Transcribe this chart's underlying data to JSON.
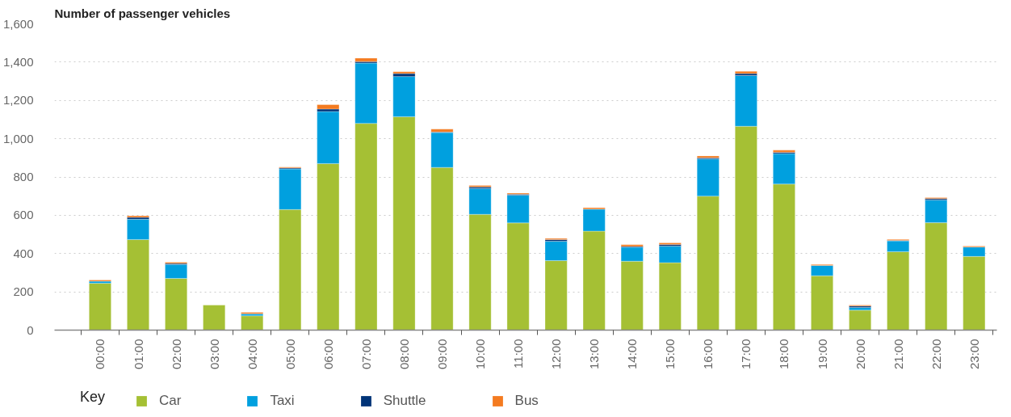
{
  "chart_data": {
    "type": "bar",
    "title": "Number of passenger vehicles",
    "categories": [
      "00:00",
      "01:00",
      "02:00",
      "03:00",
      "04:00",
      "05:00",
      "06:00",
      "07:00",
      "08:00",
      "09:00",
      "10:00",
      "11:00",
      "12:00",
      "13:00",
      "14:00",
      "15:00",
      "16:00",
      "17:00",
      "18:00",
      "19:00",
      "20:00",
      "21:00",
      "22:00",
      "23:00"
    ],
    "stacked": true,
    "series": [
      {
        "name": "Car",
        "color": "#a5c034",
        "values": [
          245,
          473,
          270,
          131,
          75,
          630,
          870,
          1080,
          1115,
          850,
          605,
          560,
          363,
          517,
          360,
          352,
          700,
          1065,
          763,
          284,
          104,
          410,
          561,
          385
        ]
      },
      {
        "name": "Taxi",
        "color": "#00a0df",
        "values": [
          10,
          106,
          73,
          null,
          10,
          212,
          272,
          315,
          210,
          182,
          135,
          145,
          101,
          115,
          73,
          87,
          194,
          265,
          159,
          54,
          14,
          56,
          119,
          49
        ]
      },
      {
        "name": "Shuttle",
        "color": "#003478",
        "values": [
          null,
          10,
          5,
          null,
          null,
          5,
          13,
          8,
          15,
          3,
          8,
          5,
          9,
          null,
          4,
          9,
          6,
          10,
          7,
          null,
          8,
          3,
          7,
          null
        ]
      },
      {
        "name": "Bus",
        "color": "#f47b20",
        "values": [
          7,
          8,
          7,
          null,
          8,
          5,
          23,
          18,
          10,
          15,
          8,
          6,
          6,
          8,
          9,
          8,
          10,
          12,
          11,
          5,
          5,
          5,
          5,
          5
        ]
      }
    ],
    "ylim": [
      0,
      1600
    ],
    "yticks": [
      0,
      {
        "value": 200,
        "label": "200"
      },
      {
        "value": 400,
        "label": "400"
      },
      {
        "value": 600,
        "label": "600"
      },
      {
        "value": 800,
        "label": "800"
      },
      {
        "value": 1000,
        "label": "1,000"
      },
      {
        "value": 1200,
        "label": "1,200"
      },
      {
        "value": 1400,
        "label": "1,400"
      },
      {
        "value": 1600,
        "label": "1,600"
      }
    ],
    "grid": "y",
    "legend": "bottom",
    "legend_title": "Key"
  }
}
